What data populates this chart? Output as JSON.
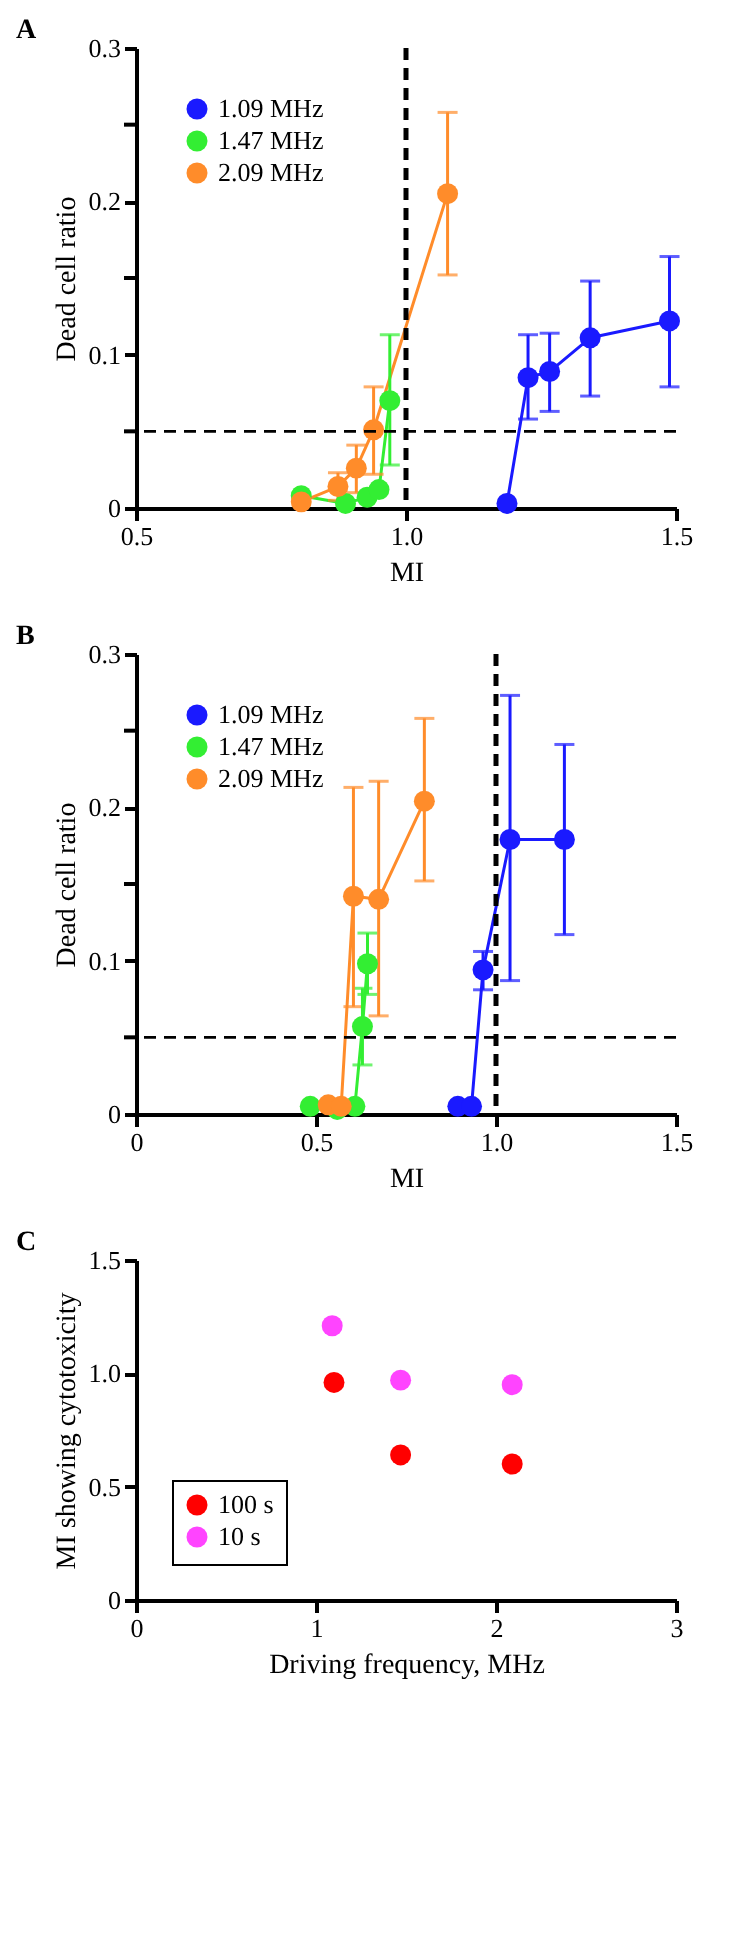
{
  "chart_data": [
    {
      "type": "line",
      "title": "A",
      "xlabel": "MI",
      "ylabel": "Dead cell ratio",
      "xlim": [
        0.5,
        1.5
      ],
      "xticks": [
        0.5,
        {
          "value": 1.0,
          "label": "1.0"
        },
        1.5
      ],
      "ylim": [
        0,
        0.3
      ],
      "yticks": [
        0,
        {
          "value": 0.05,
          "label": null
        },
        0.1,
        {
          "value": 0.15,
          "label": null
        },
        0.2,
        {
          "value": 0.25,
          "label": null
        },
        0.3
      ],
      "grid": false,
      "legend": "top left",
      "marker": "circle",
      "line_style": "solid",
      "series": [
        {
          "name": "1.09 MHz",
          "color": "#1a1aff",
          "x": [
            1.187,
            1.226,
            1.266,
            1.341,
            1.488
          ],
          "values": [
            0.003,
            0.085,
            0.089,
            0.111,
            0.122
          ],
          "errors": [
            null,
            [
              0.058,
              0.113
            ],
            [
              0.063,
              0.114
            ],
            [
              0.073,
              0.148
            ],
            [
              0.079,
              0.164
            ]
          ]
        },
        {
          "name": "1.47 MHz",
          "color": "#33ee33",
          "x": [
            0.806,
            0.888,
            0.928,
            0.95,
            0.97
          ],
          "values": [
            0.008,
            0.003,
            0.007,
            0.012,
            0.07
          ],
          "errors": [
            null,
            null,
            null,
            null,
            [
              0.028,
              0.113
            ]
          ]
        },
        {
          "name": "2.09 MHz",
          "color": "#ff8c2a",
          "x": [
            0.806,
            0.874,
            0.908,
            0.94,
            1.077
          ],
          "values": [
            0.004,
            0.014,
            0.026,
            0.051,
            0.205
          ],
          "errors": [
            null,
            [
              0.005,
              0.023
            ],
            [
              0.01,
              0.041
            ],
            [
              0.022,
              0.079
            ],
            [
              0.152,
              0.258
            ]
          ]
        }
      ],
      "ref_lines": [
        {
          "axis": "x",
          "value": 1.0,
          "label": null,
          "color": "#000000",
          "line_style": "dashed"
        },
        {
          "axis": "y",
          "value": 0.05,
          "label": null,
          "color": "#000000",
          "line_style": "dashed"
        }
      ]
    },
    {
      "type": "line",
      "title": "B",
      "xlabel": "MI",
      "ylabel": "Dead cell ratio",
      "xlim": [
        0,
        1.5
      ],
      "xticks": [
        0,
        0.5,
        {
          "value": 1.0,
          "label": "1.0"
        },
        1.5
      ],
      "ylim": [
        0,
        0.3
      ],
      "yticks": [
        0,
        {
          "value": 0.05,
          "label": null
        },
        0.1,
        {
          "value": 0.15,
          "label": null
        },
        0.2,
        {
          "value": 0.25,
          "label": null
        },
        0.3
      ],
      "grid": false,
      "legend": "top left",
      "marker": "circle",
      "line_style": "solid",
      "series": [
        {
          "name": "1.09 MHz",
          "color": "#1a1aff",
          "x": [
            0.894,
            0.932,
            0.964,
            1.039,
            1.19
          ],
          "values": [
            0.005,
            0.005,
            0.094,
            0.179,
            0.179
          ],
          "errors": [
            null,
            null,
            [
              0.081,
              0.106
            ],
            [
              0.087,
              0.273
            ],
            [
              0.117,
              0.241
            ]
          ]
        },
        {
          "name": "1.47 MHz",
          "color": "#33ee33",
          "x": [
            0.484,
            0.559,
            0.608,
            0.629,
            0.643
          ],
          "values": [
            0.005,
            0.003,
            0.005,
            0.057,
            0.098
          ],
          "errors": [
            null,
            null,
            null,
            [
              0.032,
              0.082
            ],
            [
              0.078,
              0.118
            ]
          ]
        },
        {
          "name": "2.09 MHz",
          "color": "#ff8c2a",
          "x": [
            0.534,
            0.57,
            0.604,
            0.674,
            0.801
          ],
          "values": [
            0.006,
            0.005,
            0.142,
            0.14,
            0.204
          ],
          "errors": [
            null,
            null,
            [
              0.07,
              0.213
            ],
            [
              0.064,
              0.217
            ],
            [
              0.152,
              0.258
            ]
          ]
        }
      ],
      "ref_lines": [
        {
          "axis": "x",
          "value": 1.0,
          "label": null,
          "color": "#000000",
          "line_style": "dashed"
        },
        {
          "axis": "y",
          "value": 0.05,
          "label": null,
          "color": "#000000",
          "line_style": "dashed"
        }
      ]
    },
    {
      "type": "scatter",
      "title": "C",
      "xlabel": "Driving frequency, MHz",
      "ylabel": "MI showing cytotoxicity",
      "xlim": [
        0,
        3
      ],
      "xticks": [
        0,
        1,
        2,
        3
      ],
      "ylim": [
        0,
        1.5
      ],
      "yticks": [
        0,
        0.5,
        {
          "value": 1.0,
          "label": "1.0"
        },
        1.5
      ],
      "grid": false,
      "legend": "bottom left",
      "marker": "circle",
      "series": [
        {
          "name": "100 s",
          "color": "#ff0000",
          "x": [
            1.1,
            1.47,
            2.09
          ],
          "values": [
            0.96,
            0.64,
            0.6
          ]
        },
        {
          "name": "10 s",
          "color": "#ff44ff",
          "x": [
            1.09,
            1.47,
            2.09
          ],
          "values": [
            1.21,
            0.97,
            0.95
          ]
        }
      ]
    }
  ]
}
